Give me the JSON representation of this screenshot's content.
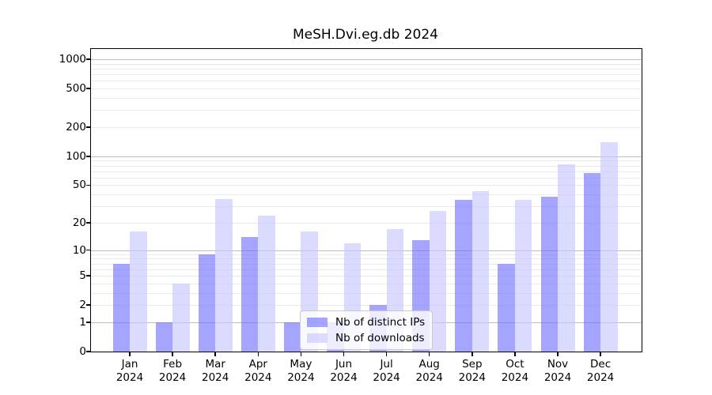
{
  "chart_data": {
    "type": "bar",
    "title": "MeSH.Dvi.eg.db 2024",
    "xlabel": "",
    "ylabel": "",
    "year_label": "2024",
    "categories": [
      "Jan",
      "Feb",
      "Mar",
      "Apr",
      "May",
      "Jun",
      "Jul",
      "Aug",
      "Sep",
      "Oct",
      "Nov",
      "Dec"
    ],
    "series": [
      {
        "name": "Nb of distinct IPs",
        "color": "rgba(105,105,255,0.60)",
        "values": [
          7,
          1,
          9,
          14,
          1,
          1,
          2,
          13,
          35,
          7,
          38,
          67
        ]
      },
      {
        "name": "Nb of downloads",
        "color": "rgba(200,200,255,0.65)",
        "values": [
          16,
          4,
          36,
          24,
          16,
          12,
          17,
          27,
          43,
          35,
          83,
          140
        ]
      }
    ],
    "yscale": "log1p",
    "ylim": [
      0,
      1280
    ],
    "ytick_labels": [
      0,
      1,
      2,
      5,
      10,
      20,
      50,
      100,
      200,
      500,
      1000
    ],
    "major_gridlines": [
      1,
      10,
      100,
      1000
    ],
    "minor_gridlines": [
      2,
      3,
      4,
      5,
      6,
      7,
      8,
      9,
      20,
      30,
      40,
      50,
      60,
      70,
      80,
      90,
      200,
      300,
      400,
      500,
      600,
      700,
      800,
      900
    ],
    "grid": true,
    "legend_position": "bottom-center"
  },
  "colors": {
    "grid_major": "#bdbdbd",
    "grid_minor": "#eaeaea",
    "frame": "#000000",
    "bar_ips": "rgba(105,105,255,0.60)",
    "bar_downloads": "rgba(200,200,255,0.65)"
  }
}
